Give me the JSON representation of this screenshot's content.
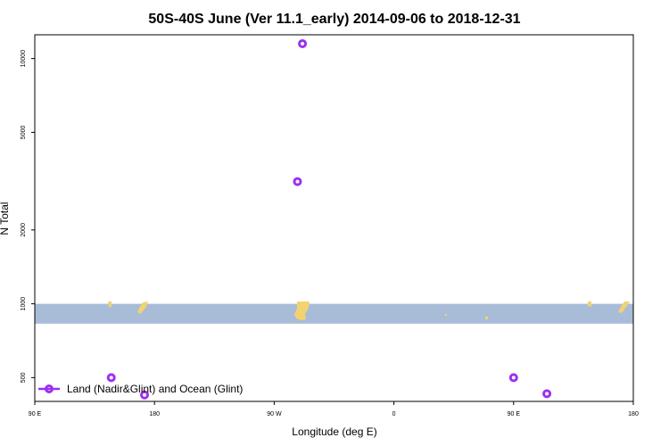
{
  "chart_data": {
    "type": "scatter",
    "title": "50S-40S June (Ver 11.1_early)   2014-09-06 to 2018-12-31",
    "xlabel": "Longitude (deg E)",
    "ylabel": "N Total",
    "x_axis": {
      "range": [
        90,
        450
      ],
      "ticks": [
        {
          "value": 90,
          "label": "90 E"
        },
        {
          "value": 162,
          "label": "180"
        },
        {
          "value": 234,
          "label": "90 W"
        },
        {
          "value": 306,
          "label": "0"
        },
        {
          "value": 378,
          "label": "90 E"
        },
        {
          "value": 450,
          "label": "180"
        }
      ]
    },
    "y_axis": {
      "scale": "log",
      "range": [
        400,
        12500
      ],
      "ticks": [
        {
          "value": 500,
          "label": "500"
        },
        {
          "value": 1000,
          "label": "1000"
        },
        {
          "value": 2000,
          "label": "2000"
        },
        {
          "value": 5000,
          "label": "5000"
        },
        {
          "value": 10000,
          "label": "10000"
        }
      ]
    },
    "band": {
      "from": 830,
      "to": 1000,
      "color": "#a8bcd8"
    },
    "land_color": "#f3d36f",
    "series": [
      {
        "name": "Land (Nadir&Glint) and Ocean (Glint)",
        "color": "#9b30f0",
        "marker": "open-circle",
        "points": [
          {
            "x": 136,
            "y": 500
          },
          {
            "x": 156,
            "y": 425
          },
          {
            "x": 248,
            "y": 3150
          },
          {
            "x": 251,
            "y": 11500
          },
          {
            "x": 378,
            "y": 500
          },
          {
            "x": 398,
            "y": 430
          }
        ]
      }
    ],
    "legend": {
      "position": "bottom-left"
    },
    "grid": false
  }
}
